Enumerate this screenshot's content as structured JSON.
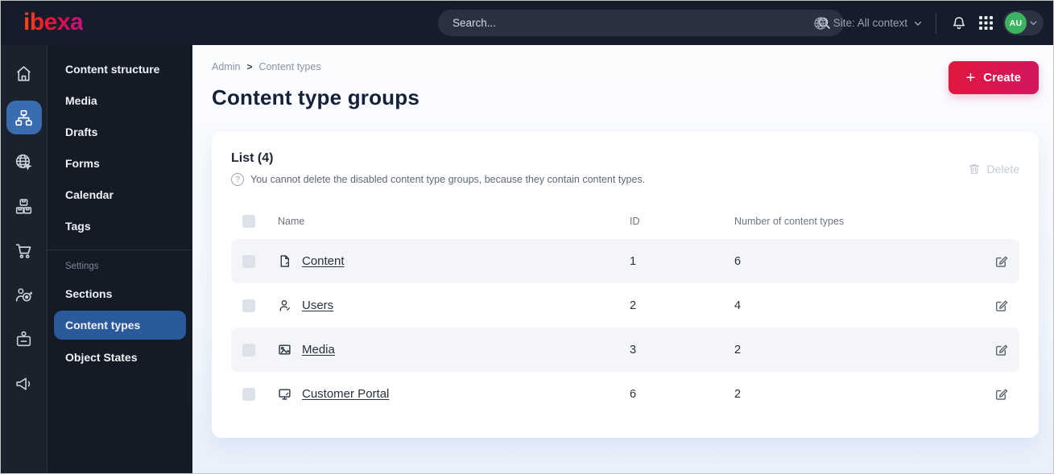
{
  "topbar": {
    "logo_text": "ibexa",
    "search_placeholder": "Search...",
    "site_label": "Site: All context",
    "avatar_initials": "AU"
  },
  "icon_rail": {
    "items": [
      "home",
      "content-structure",
      "site",
      "product-catalog",
      "commerce",
      "customer-segments",
      "admin",
      "marketing"
    ],
    "active": "content-structure"
  },
  "sidebar": {
    "items": [
      {
        "label": "Content structure"
      },
      {
        "label": "Media"
      },
      {
        "label": "Drafts"
      },
      {
        "label": "Forms"
      },
      {
        "label": "Calendar"
      },
      {
        "label": "Tags"
      }
    ],
    "section_label": "Settings",
    "section_items": [
      {
        "label": "Sections",
        "active": false
      },
      {
        "label": "Content types",
        "active": true
      },
      {
        "label": "Object States",
        "active": false
      }
    ]
  },
  "main": {
    "breadcrumb": {
      "items": [
        "Admin",
        "Content types"
      ],
      "separator": ">"
    },
    "create_button": "Create",
    "page_title": "Content type groups",
    "card": {
      "list_title": "List (4)",
      "info_text": "You cannot delete the disabled content type groups, because they contain content types.",
      "delete_button": "Delete",
      "table": {
        "columns": {
          "name": "Name",
          "id": "ID",
          "count": "Number of content types"
        },
        "rows": [
          {
            "icon": "content-file-icon",
            "name": "Content",
            "id": "1",
            "count": "6"
          },
          {
            "icon": "users-icon",
            "name": "Users",
            "id": "2",
            "count": "4"
          },
          {
            "icon": "media-image-icon",
            "name": "Media",
            "id": "3",
            "count": "2"
          },
          {
            "icon": "customer-portal-monitor-icon",
            "name": "Customer Portal",
            "id": "6",
            "count": "2"
          }
        ]
      }
    }
  },
  "colors": {
    "topbar_bg": "#161c29",
    "sidebar_bg": "#141a26",
    "active_blue": "#2b5a9c",
    "create_gradient_start": "#e0173d",
    "create_gradient_end": "#d31660",
    "avatar_green": "#3cb45f",
    "row_alt_bg": "#f3f5f8"
  }
}
